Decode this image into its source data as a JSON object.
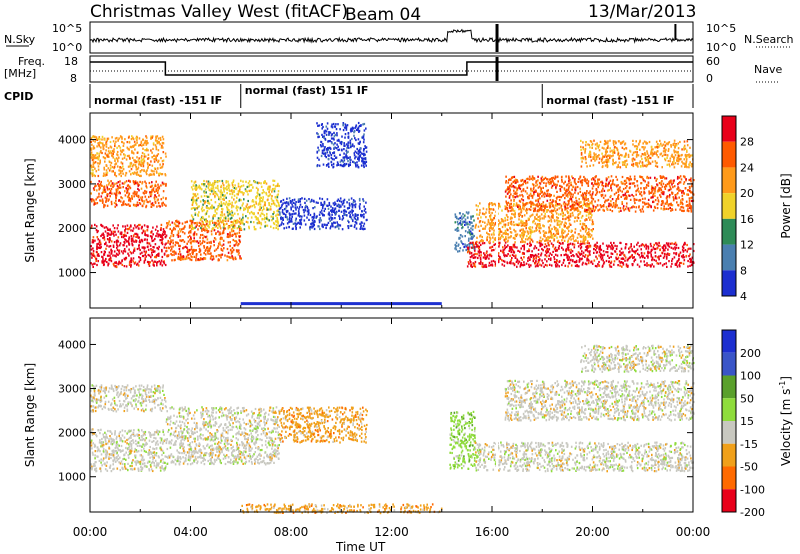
{
  "header": {
    "title": "Christmas Valley West (fitACF)",
    "beam": "Beam 04",
    "date": "13/Mar/2013"
  },
  "strips": {
    "nsky_label": "N.Sky",
    "nsky_ticks": [
      "10^5",
      "10^0"
    ],
    "nsearch_label": "N.Search",
    "freq_label_1": "Freq.",
    "freq_label_2": "[MHz]",
    "freq_ticks": [
      "18",
      "8"
    ],
    "nave_label": "Nave",
    "nave_ticks": [
      "60",
      "0"
    ],
    "cpid_label": "CPID",
    "cpid_segments": [
      {
        "label": "normal (fast) -151 IF",
        "start": 0,
        "end": 6
      },
      {
        "label": "normal (fast) 151 IF",
        "start": 6,
        "end": 18
      },
      {
        "label": "normal (fast) -151 IF",
        "start": 18,
        "end": 24
      }
    ]
  },
  "chart_data": [
    {
      "type": "heatmap",
      "panel": "power",
      "xlabel": "",
      "ylabel": "Slant Range [km]",
      "yticks": [
        1000,
        2000,
        3000,
        4000
      ],
      "ylim": [
        200,
        4600
      ],
      "colorbar_label": "Power [dB]",
      "colorbar_ticks": [
        "28",
        "24",
        "20",
        "16",
        "12",
        "8",
        "4"
      ],
      "colors": [
        "#e8001a",
        "#ff5a00",
        "#ff9a1a",
        "#f0d22a",
        "#2e8b57",
        "#4a7fb0",
        "#1c2fd0"
      ],
      "bands": [
        {
          "t0": 0.0,
          "t1": 3.0,
          "r0": 1150,
          "r1": 2100,
          "level": 0
        },
        {
          "t0": 0.0,
          "t1": 3.0,
          "r0": 2500,
          "r1": 3100,
          "level": 1
        },
        {
          "t0": 0.0,
          "t1": 3.0,
          "r0": 3200,
          "r1": 4100,
          "level": 2
        },
        {
          "t0": 3.0,
          "t1": 6.0,
          "r0": 1300,
          "r1": 2200,
          "level": 1
        },
        {
          "t0": 4.0,
          "t1": 7.5,
          "r0": 2000,
          "r1": 3100,
          "level": 3
        },
        {
          "t0": 7.5,
          "t1": 11.0,
          "r0": 2000,
          "r1": 2700,
          "level": 6
        },
        {
          "t0": 9.0,
          "t1": 11.0,
          "r0": 3400,
          "r1": 4400,
          "level": 6
        },
        {
          "t0": 14.5,
          "t1": 15.3,
          "r0": 1500,
          "r1": 2400,
          "level": 5
        },
        {
          "t0": 15.0,
          "t1": 24.0,
          "r0": 1150,
          "r1": 1700,
          "level": 0
        },
        {
          "t0": 15.3,
          "t1": 20.0,
          "r0": 1700,
          "r1": 2600,
          "level": 2
        },
        {
          "t0": 16.5,
          "t1": 24.0,
          "r0": 2400,
          "r1": 3200,
          "level": 1
        },
        {
          "t0": 19.5,
          "t1": 24.0,
          "r0": 3400,
          "r1": 4000,
          "level": 2
        }
      ]
    },
    {
      "type": "heatmap",
      "panel": "velocity",
      "xlabel": "Time UT",
      "ylabel": "Slant Range [km]",
      "yticks": [
        1000,
        2000,
        3000,
        4000
      ],
      "ylim": [
        200,
        4600
      ],
      "colorbar_label": "Velocity [m s",
      "colorbar_label_sup": "-1",
      "colorbar_label_end": "]",
      "colorbar_ticks": [
        "200",
        "100",
        "50",
        "15",
        "-15",
        "-50",
        "-100",
        "-200"
      ],
      "colors": [
        "#1c2fd0",
        "#3a55c8",
        "#5aa02c",
        "#8fdc3c",
        "#c8c8c0",
        "#f0a01a",
        "#ff6a00",
        "#e8001a"
      ],
      "xticks": [
        "00:00",
        "04:00",
        "08:00",
        "12:00",
        "16:00",
        "20:00",
        "00:00"
      ],
      "bands": [
        {
          "t0": 0.0,
          "t1": 3.0,
          "r0": 1150,
          "r1": 2100,
          "level": 4
        },
        {
          "t0": 0.0,
          "t1": 3.0,
          "r0": 2500,
          "r1": 3100,
          "level": 4
        },
        {
          "t0": 3.0,
          "t1": 7.5,
          "r0": 1300,
          "r1": 2600,
          "level": 4
        },
        {
          "t0": 7.5,
          "t1": 11.0,
          "r0": 1800,
          "r1": 2600,
          "level": 5
        },
        {
          "t0": 14.3,
          "t1": 15.3,
          "r0": 1200,
          "r1": 2500,
          "level": 3
        },
        {
          "t0": 15.3,
          "t1": 24.0,
          "r0": 1150,
          "r1": 1800,
          "level": 4
        },
        {
          "t0": 16.5,
          "t1": 24.0,
          "r0": 2300,
          "r1": 3200,
          "level": 4
        },
        {
          "t0": 19.5,
          "t1": 24.0,
          "r0": 3400,
          "r1": 4000,
          "level": 4
        },
        {
          "t0": 6.0,
          "t1": 14.0,
          "r0": 200,
          "r1": 400,
          "level": 5
        }
      ]
    }
  ]
}
